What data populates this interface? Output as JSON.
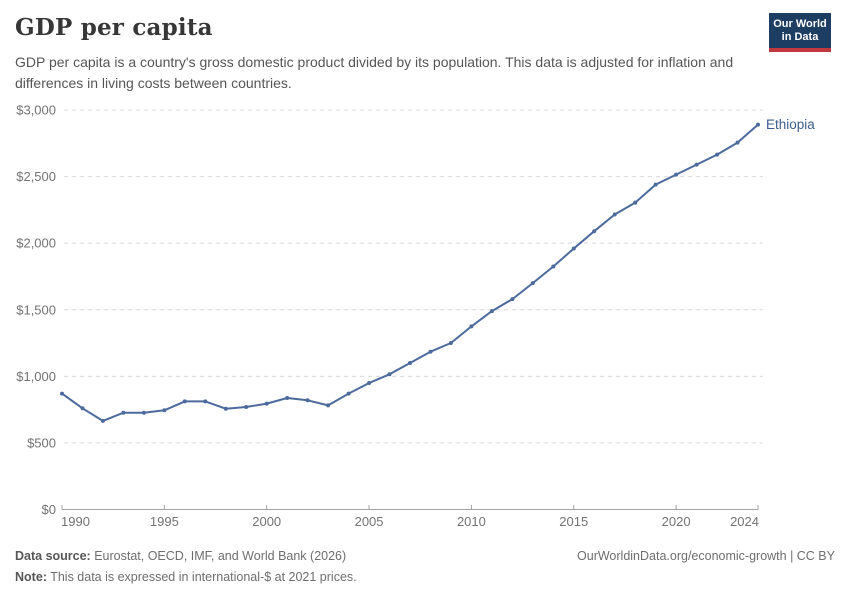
{
  "header": {
    "title": "GDP per capita",
    "subtitle": "GDP per capita is a country's gross domestic product divided by its population. This data is adjusted for inflation and differences in living costs between countries.",
    "logo": {
      "line1": "Our World",
      "line2": "in Data"
    }
  },
  "chart_data": {
    "type": "line",
    "title": "GDP per capita",
    "xlabel": "",
    "ylabel": "",
    "xlim": [
      1990,
      2024
    ],
    "ylim": [
      0,
      3000
    ],
    "grid": "horizontal-dashed",
    "legend_position": "end-of-line-label",
    "x": [
      1990,
      1991,
      1992,
      1993,
      1994,
      1995,
      1996,
      1997,
      1998,
      1999,
      2000,
      2001,
      2002,
      2003,
      2004,
      2005,
      2006,
      2007,
      2008,
      2009,
      2010,
      2011,
      2012,
      2013,
      2014,
      2015,
      2016,
      2017,
      2018,
      2019,
      2020,
      2021,
      2022,
      2023,
      2024
    ],
    "series": [
      {
        "name": "Ethiopia",
        "values": [
          870,
          760,
          665,
          727,
          727,
          745,
          812,
          812,
          757,
          770,
          795,
          837,
          820,
          782,
          870,
          950,
          1015,
          1100,
          1185,
          1250,
          1375,
          1490,
          1580,
          1700,
          1825,
          1960,
          2090,
          2215,
          2305,
          2440,
          2515,
          2590,
          2665,
          2755,
          2890
        ]
      }
    ],
    "y_ticks": [
      {
        "value": 0,
        "label": "$0"
      },
      {
        "value": 500,
        "label": "$500"
      },
      {
        "value": 1000,
        "label": "$1,000"
      },
      {
        "value": 1500,
        "label": "$1,500"
      },
      {
        "value": 2000,
        "label": "$2,000"
      },
      {
        "value": 2500,
        "label": "$2,500"
      },
      {
        "value": 3000,
        "label": "$3,000"
      }
    ],
    "x_ticks": [
      {
        "value": 1990,
        "label": "1990"
      },
      {
        "value": 1995,
        "label": "1995"
      },
      {
        "value": 2000,
        "label": "2000"
      },
      {
        "value": 2005,
        "label": "2005"
      },
      {
        "value": 2010,
        "label": "2010"
      },
      {
        "value": 2015,
        "label": "2015"
      },
      {
        "value": 2020,
        "label": "2020"
      },
      {
        "value": 2024,
        "label": "2024"
      }
    ],
    "colors": {
      "line": "#4c6a9c",
      "entity_label": "#3d5c8f",
      "grid": "#d9d9d9",
      "axis": "#a3a3a3",
      "tick_label": "#737373"
    }
  },
  "footer": {
    "source_label": "Data source:",
    "source_text": " Eurostat, OECD, IMF, and World Bank (2026)",
    "note_label": "Note:",
    "note_text": " This data is expressed in international-$ at 2021 prices.",
    "link": "OurWorldinData.org/economic-growth | CC BY"
  }
}
